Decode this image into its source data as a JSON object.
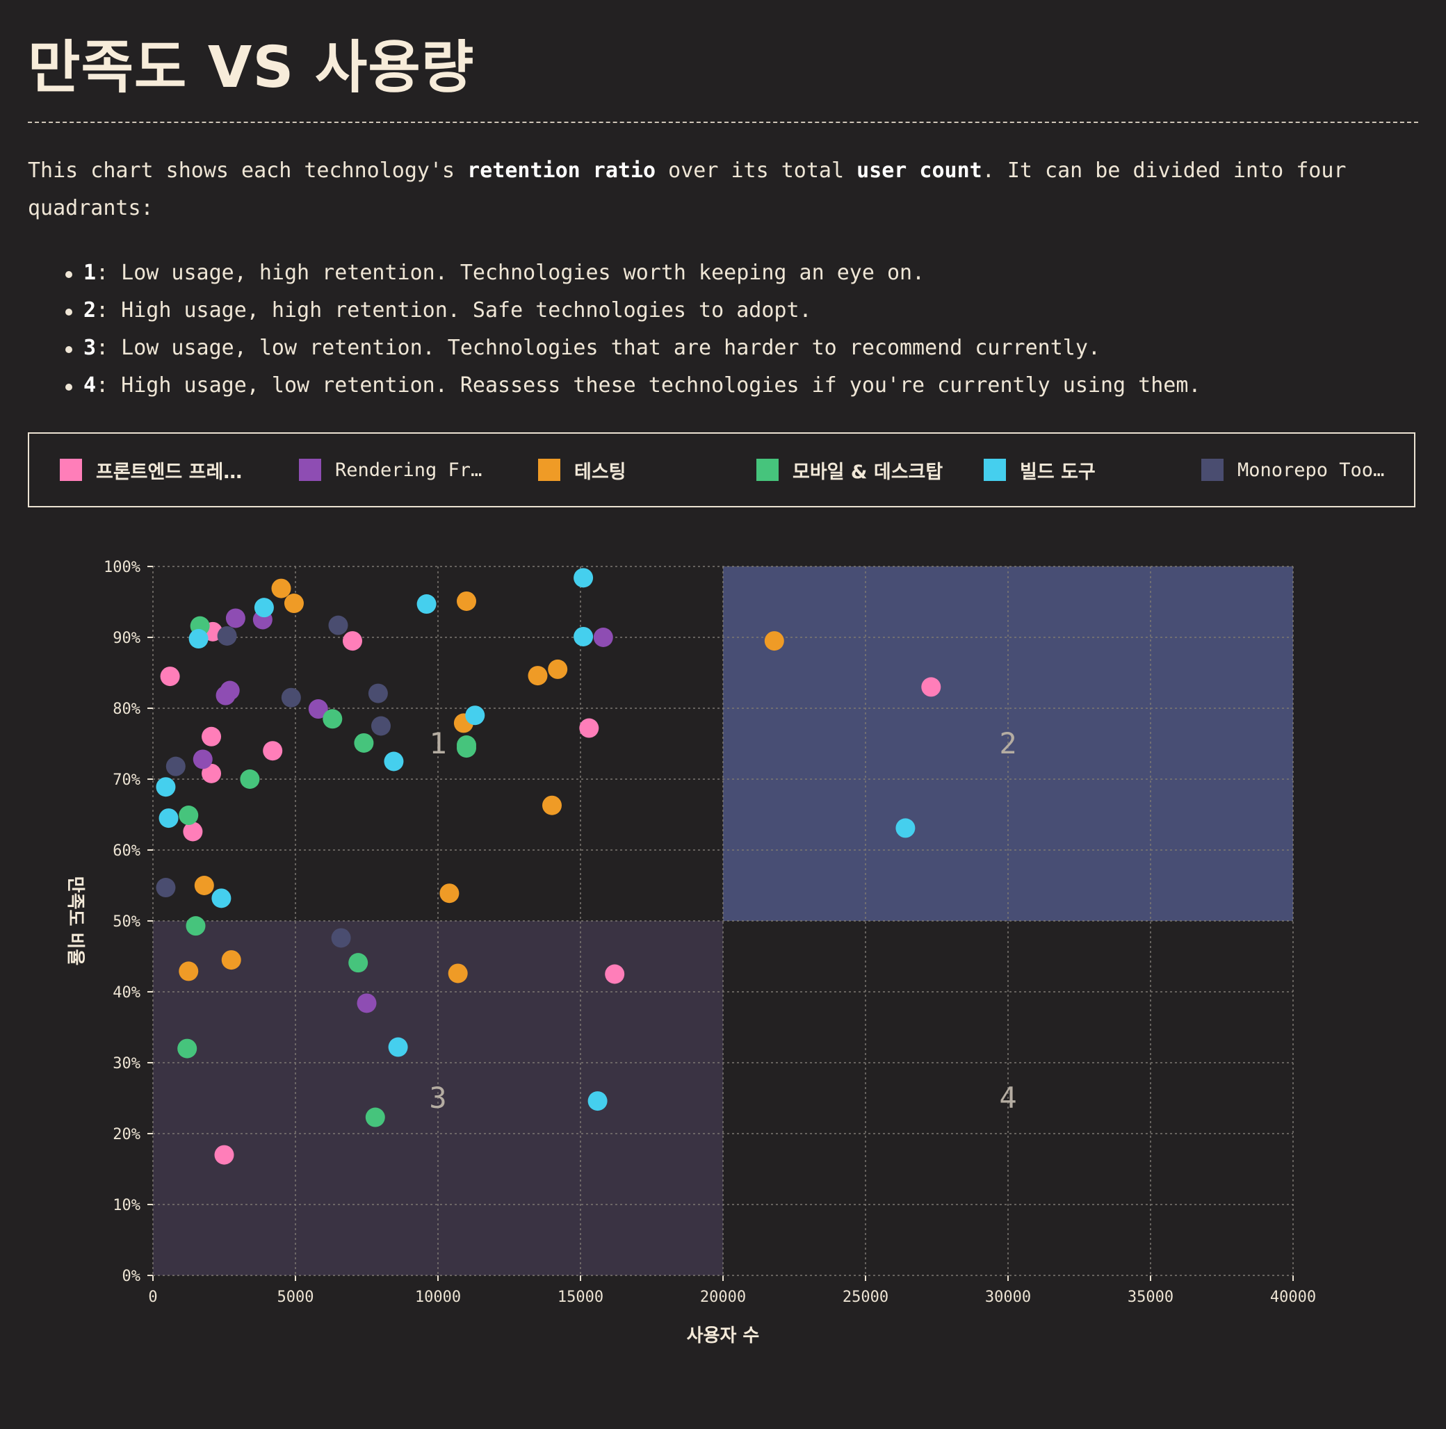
{
  "title": "만족도 VS 사용량",
  "intro": {
    "p1": "This chart shows each technology's ",
    "b1": "retention ratio",
    "p2": " over its total ",
    "b2": "user count",
    "p3": ". It can be divided into four quadrants:"
  },
  "quadrants": [
    {
      "key": "1",
      "text": ": Low usage, high retention. Technologies worth keeping an eye on."
    },
    {
      "key": "2",
      "text": ": High usage, high retention. Safe technologies to adopt."
    },
    {
      "key": "3",
      "text": ": Low usage, low retention. Technologies that are harder to recommend currently."
    },
    {
      "key": "4",
      "text": ": High usage, low retention. Reassess these technologies if you're currently using them."
    }
  ],
  "legend": [
    {
      "label": "프론트엔드 프레임…",
      "color": "#ff7eb9"
    },
    {
      "label": "Rendering Fra…",
      "color": "#8e4db3"
    },
    {
      "label": "테스팅",
      "color": "#ef9b26"
    },
    {
      "label": "모바일 & 데스크탑",
      "color": "#46c47c"
    },
    {
      "label": "빌드 도구",
      "color": "#45cfee"
    },
    {
      "label": "Monorepo Tools",
      "color": "#4a4d70"
    }
  ],
  "chart_data": {
    "type": "scatter",
    "xlabel": "사용자 수",
    "ylabel": "만족도 비율",
    "xlim": [
      0,
      40000
    ],
    "ylim": [
      0,
      100
    ],
    "x_ticks": [
      "0",
      "5000",
      "10000",
      "15000",
      "20000",
      "25000",
      "30000",
      "35000",
      "40000"
    ],
    "y_ticks": [
      "0%",
      "10%",
      "20%",
      "30%",
      "40%",
      "50%",
      "60%",
      "70%",
      "80%",
      "90%",
      "100%"
    ],
    "grid": true,
    "quadrant_labels": [
      "1",
      "2",
      "3",
      "4"
    ],
    "quadrant_split": {
      "x": 20000,
      "y": 50
    },
    "series": [
      {
        "name": "프론트엔드 프레임…",
        "color": "#ff7eb9",
        "points": [
          [
            600,
            84.5
          ],
          [
            2100,
            90.8
          ],
          [
            7000,
            89.5
          ],
          [
            2050,
            76
          ],
          [
            4200,
            74
          ],
          [
            2050,
            70.8
          ],
          [
            1400,
            62.6
          ],
          [
            15300,
            77.2
          ],
          [
            16200,
            42.5
          ],
          [
            2500,
            17
          ],
          [
            27300,
            83
          ]
        ]
      },
      {
        "name": "Rendering Fra…",
        "color": "#8e4db3",
        "points": [
          [
            2900,
            92.7
          ],
          [
            3850,
            92.5
          ],
          [
            2550,
            81.8
          ],
          [
            2700,
            82.5
          ],
          [
            1750,
            72.8
          ],
          [
            5800,
            79.9
          ],
          [
            15800,
            90
          ],
          [
            7500,
            38.4
          ]
        ]
      },
      {
        "name": "테스팅",
        "color": "#ef9b26",
        "points": [
          [
            4500,
            96.9
          ],
          [
            4950,
            94.8
          ],
          [
            11000,
            95.1
          ],
          [
            13500,
            84.6
          ],
          [
            14200,
            85.5
          ],
          [
            10900,
            77.9
          ],
          [
            14000,
            66.3
          ],
          [
            10400,
            53.9
          ],
          [
            1800,
            55
          ],
          [
            1250,
            42.9
          ],
          [
            2750,
            44.5
          ],
          [
            10700,
            42.6
          ],
          [
            21800,
            89.5
          ]
        ]
      },
      {
        "name": "모바일 & 데스크탑",
        "color": "#46c47c",
        "points": [
          [
            1650,
            91.6
          ],
          [
            6300,
            78.5
          ],
          [
            7400,
            75.1
          ],
          [
            11000,
            74.8
          ],
          [
            11000,
            74.4
          ],
          [
            3400,
            70
          ],
          [
            1250,
            64.9
          ],
          [
            1500,
            49.3
          ],
          [
            7200,
            44.1
          ],
          [
            1200,
            32
          ],
          [
            7800,
            22.3
          ]
        ]
      },
      {
        "name": "빌드 도구",
        "color": "#45cfee",
        "points": [
          [
            3900,
            94.2
          ],
          [
            1600,
            89.8
          ],
          [
            9600,
            94.7
          ],
          [
            15100,
            98.4
          ],
          [
            15100,
            90.1
          ],
          [
            11300,
            79
          ],
          [
            8450,
            72.5
          ],
          [
            450,
            68.9
          ],
          [
            550,
            64.5
          ],
          [
            2400,
            53.2
          ],
          [
            8600,
            32.2
          ],
          [
            15600,
            24.6
          ],
          [
            26400,
            63.1
          ]
        ]
      },
      {
        "name": "Monorepo Tools",
        "color": "#4a4d70",
        "points": [
          [
            2600,
            90.2
          ],
          [
            6500,
            91.7
          ],
          [
            4850,
            81.5
          ],
          [
            7900,
            82.1
          ],
          [
            8000,
            77.5
          ],
          [
            800,
            71.8
          ],
          [
            450,
            54.7
          ],
          [
            6600,
            47.6
          ]
        ]
      }
    ]
  }
}
